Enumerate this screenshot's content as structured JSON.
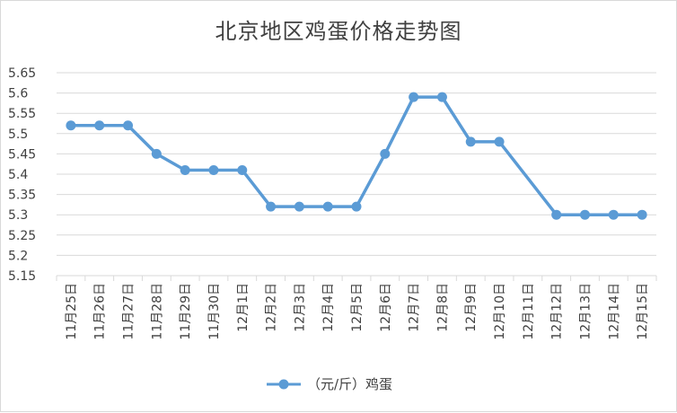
{
  "chart_data": {
    "type": "line",
    "title": "北京地区鸡蛋价格走势图",
    "xlabel": "",
    "ylabel": "",
    "categories": [
      "11月25日",
      "11月26日",
      "11月27日",
      "11月28日",
      "11月29日",
      "11月30日",
      "12月1日",
      "12月2日",
      "12月3日",
      "12月4日",
      "12月5日",
      "12月6日",
      "12月7日",
      "12月8日",
      "12月9日",
      "12月10日",
      "12月11日",
      "12月12日",
      "12月13日",
      "12月14日",
      "12月15日"
    ],
    "series": [
      {
        "name": "（元/斤）鸡蛋",
        "values": [
          5.52,
          5.52,
          5.52,
          5.45,
          5.41,
          5.41,
          5.41,
          5.32,
          5.32,
          5.32,
          5.32,
          5.45,
          5.59,
          5.59,
          5.48,
          5.48,
          null,
          5.3,
          5.3,
          5.3,
          5.3
        ]
      }
    ],
    "ylim": [
      5.15,
      5.65
    ],
    "yticks": [
      "5.15",
      "5.2",
      "5.25",
      "5.3",
      "5.35",
      "5.4",
      "5.45",
      "5.5",
      "5.55",
      "5.6",
      "5.65"
    ],
    "grid": true,
    "legend": "bottom",
    "colors": {
      "series": "#5b9bd5",
      "grid": "#d9d9d9",
      "text": "#404040"
    }
  }
}
